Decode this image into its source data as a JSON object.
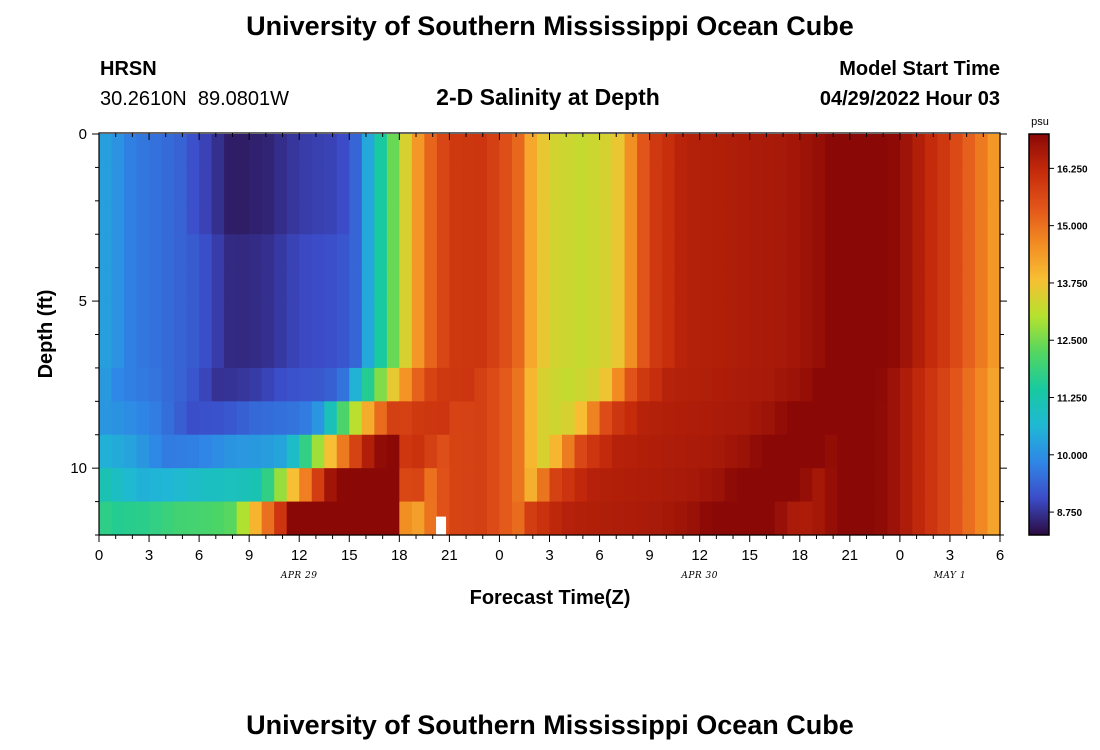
{
  "header": {
    "title": "University of Southern Mississippi Ocean Cube",
    "station": "HRSN",
    "coords": "30.2610N  89.0801W",
    "plot_title": "2-D Salinity at Depth",
    "start_label": "Model Start Time",
    "start_value": "04/29/2022 Hour 03"
  },
  "footer": {
    "title": "University of Southern Mississippi Ocean Cube"
  },
  "colors": {
    "stops": [
      "#2a0a3e",
      "#3c4bc8",
      "#2f86e6",
      "#1fb8d4",
      "#18c9a0",
      "#52d661",
      "#b5e22e",
      "#f7bf33",
      "#f28b22",
      "#e2541a",
      "#c42a0b",
      "#8a0806"
    ],
    "missing": "#ffffff",
    "frame": "#000000"
  },
  "chart_data": {
    "type": "heatmap",
    "title": "2-D Salinity at Depth",
    "xlabel": "Forecast Time(Z)",
    "ylabel": "Depth (ft)",
    "units": "psu",
    "x_range_hours": [
      0,
      54
    ],
    "y_range_ft": [
      0,
      12
    ],
    "time_step_hours": 0.75,
    "depth_bins": 12,
    "depth_step_ft": 1,
    "x_tick_labels": [
      "0",
      "3",
      "6",
      "9",
      "12",
      "15",
      "18",
      "21",
      "0",
      "3",
      "6",
      "9",
      "12",
      "15",
      "18",
      "21",
      "0",
      "3",
      "6"
    ],
    "x_tick_hours": [
      0,
      3,
      6,
      9,
      12,
      15,
      18,
      21,
      24,
      27,
      30,
      33,
      36,
      39,
      42,
      45,
      48,
      51,
      54
    ],
    "y_tick_values": [
      0,
      5,
      10
    ],
    "y_tick_labels": [
      "0",
      "5",
      "10"
    ],
    "date_labels": [
      {
        "text": "APR 29",
        "hour": 12
      },
      {
        "text": "APR 30",
        "hour": 36
      },
      {
        "text": "MAY 1",
        "hour": 51
      }
    ],
    "colorbar": {
      "unit": "psu",
      "min": 8.25,
      "max": 17.0,
      "ticks": [
        8.75,
        10.0,
        11.25,
        12.5,
        13.75,
        15.0,
        16.25
      ],
      "tick_labels": [
        "8.750",
        "10.000",
        "11.250",
        "12.500",
        "13.750",
        "15.000",
        "16.250"
      ]
    },
    "missing_cell": {
      "hour": 20.5,
      "depth_bin": 11
    },
    "surface_salinity_profile": [
      {
        "hour": 0,
        "psu": 10.3
      },
      {
        "hour": 1,
        "psu": 10.1
      },
      {
        "hour": 2,
        "psu": 9.7
      },
      {
        "hour": 4,
        "psu": 9.5
      },
      {
        "hour": 6,
        "psu": 9.2
      },
      {
        "hour": 8,
        "psu": 8.6
      },
      {
        "hour": 10,
        "psu": 8.7
      },
      {
        "hour": 12,
        "psu": 9.0
      },
      {
        "hour": 14,
        "psu": 9.1
      },
      {
        "hour": 15.3,
        "psu": 9.3
      },
      {
        "hour": 16.3,
        "psu": 10.6
      },
      {
        "hour": 17,
        "psu": 11.6
      },
      {
        "hour": 18,
        "psu": 12.9
      },
      {
        "hour": 19,
        "psu": 14.3
      },
      {
        "hour": 20,
        "psu": 15.3
      },
      {
        "hour": 21,
        "psu": 15.9
      },
      {
        "hour": 23,
        "psu": 16.0
      },
      {
        "hour": 25,
        "psu": 15.3
      },
      {
        "hour": 26,
        "psu": 14.0
      },
      {
        "hour": 27,
        "psu": 13.4
      },
      {
        "hour": 29,
        "psu": 13.2
      },
      {
        "hour": 31,
        "psu": 13.5
      },
      {
        "hour": 32,
        "psu": 14.7
      },
      {
        "hour": 33,
        "psu": 15.8
      },
      {
        "hour": 35,
        "psu": 16.4
      },
      {
        "hour": 38,
        "psu": 16.5
      },
      {
        "hour": 41,
        "psu": 16.6
      },
      {
        "hour": 43,
        "psu": 16.8
      },
      {
        "hour": 44.5,
        "psu": 17.2
      },
      {
        "hour": 46,
        "psu": 17.3
      },
      {
        "hour": 47.5,
        "psu": 17.0
      },
      {
        "hour": 49,
        "psu": 16.5
      },
      {
        "hour": 51,
        "psu": 15.8
      },
      {
        "hour": 53,
        "psu": 14.8
      },
      {
        "hour": 54,
        "psu": 14.2
      }
    ]
  }
}
